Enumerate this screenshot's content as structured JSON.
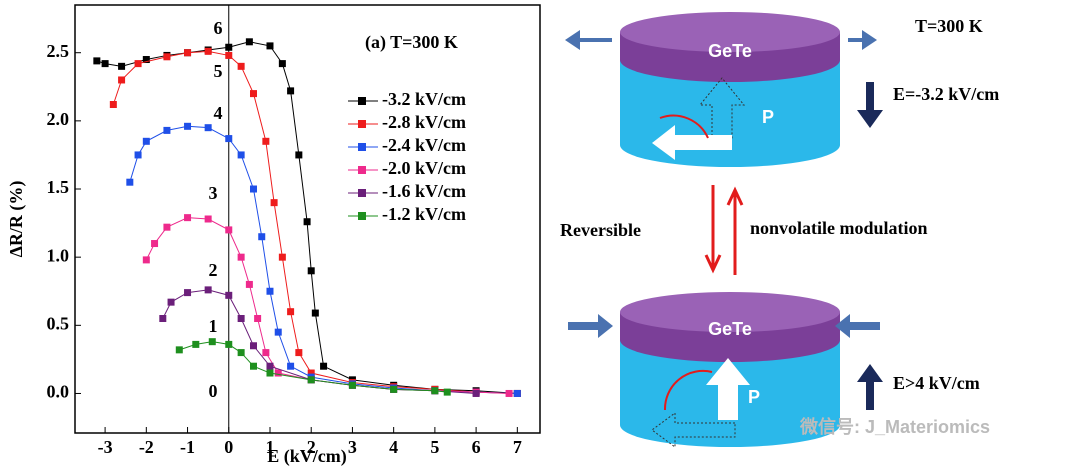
{
  "chart_data": {
    "type": "line",
    "title": "(a) T=300 K",
    "x_label": "E (kV/cm)",
    "y_label": "ΔR/R (%)",
    "xlim": [
      -3.73,
      7.55
    ],
    "ylim": [
      -0.29,
      2.85
    ],
    "xticks": [
      -3,
      -2,
      -1,
      0,
      1,
      2,
      3,
      4,
      5,
      6,
      7
    ],
    "yticks": [
      {
        "value": 0,
        "label": "0.0"
      },
      {
        "value": 0.5,
        "label": "0.5"
      },
      {
        "value": 1,
        "label": "1.0"
      },
      {
        "value": 1.5,
        "label": "1.5"
      },
      {
        "value": 2,
        "label": "2.0"
      },
      {
        "value": 2.5,
        "label": "2.5"
      }
    ],
    "annotations": [
      "6",
      "5",
      "4",
      "3",
      "2",
      "1",
      "0"
    ],
    "series": [
      {
        "name": "-3.2 kV/cm",
        "color": "#000000",
        "x": [
          -3.2,
          -3.0,
          -2.6,
          -2.0,
          -1.5,
          -1,
          -0.5,
          0,
          0.5,
          1.0,
          1.3,
          1.5,
          1.7,
          1.9,
          2.0,
          2.1,
          2.3,
          3,
          4,
          5,
          6,
          7
        ],
        "values": [
          2.44,
          2.42,
          2.4,
          2.45,
          2.48,
          2.5,
          2.52,
          2.54,
          2.58,
          2.55,
          2.42,
          2.22,
          1.75,
          1.26,
          0.9,
          0.59,
          0.2,
          0.1,
          0.06,
          0.03,
          0.02,
          0
        ]
      },
      {
        "name": "-2.8 kV/cm",
        "color": "#ee1c1c",
        "x": [
          -2.8,
          -2.6,
          -2.2,
          -1.5,
          -1,
          -0.5,
          0,
          0.3,
          0.6,
          0.9,
          1.1,
          1.3,
          1.5,
          1.7,
          2,
          3,
          4,
          5,
          6,
          7
        ],
        "values": [
          2.12,
          2.3,
          2.42,
          2.47,
          2.5,
          2.51,
          2.48,
          2.4,
          2.2,
          1.85,
          1.4,
          1.0,
          0.6,
          0.3,
          0.15,
          0.08,
          0.05,
          0.03,
          0.01,
          0
        ]
      },
      {
        "name": "-2.4 kV/cm",
        "color": "#1f4fe8",
        "x": [
          -2.4,
          -2.2,
          -2,
          -1.5,
          -1,
          -0.5,
          0,
          0.3,
          0.6,
          0.8,
          1.0,
          1.2,
          1.5,
          2,
          3,
          4,
          5,
          6,
          7
        ],
        "values": [
          1.55,
          1.75,
          1.85,
          1.93,
          1.96,
          1.95,
          1.87,
          1.75,
          1.5,
          1.15,
          0.75,
          0.45,
          0.2,
          0.12,
          0.07,
          0.04,
          0.02,
          0.01,
          0
        ]
      },
      {
        "name": "-2.0 kV/cm",
        "color": "#ee2a8c",
        "x": [
          -2.0,
          -1.8,
          -1.5,
          -1,
          -0.5,
          0,
          0.3,
          0.5,
          0.7,
          0.9,
          1.2,
          2,
          3,
          4,
          5,
          6,
          6.8
        ],
        "values": [
          0.98,
          1.1,
          1.22,
          1.29,
          1.28,
          1.2,
          1.0,
          0.8,
          0.55,
          0.3,
          0.15,
          0.1,
          0.06,
          0.03,
          0.02,
          0.01,
          0
        ]
      },
      {
        "name": "-1.6 kV/cm",
        "color": "#6b1f7a",
        "x": [
          -1.6,
          -1.4,
          -1,
          -0.5,
          0,
          0.3,
          0.6,
          1,
          2,
          3,
          4,
          5,
          6
        ],
        "values": [
          0.55,
          0.67,
          0.74,
          0.76,
          0.72,
          0.55,
          0.35,
          0.2,
          0.1,
          0.06,
          0.03,
          0.02,
          0
        ]
      },
      {
        "name": "-1.2 kV/cm",
        "color": "#1e8f1e",
        "x": [
          -1.2,
          -0.8,
          -0.4,
          0,
          0.3,
          0.6,
          1,
          2,
          3,
          4,
          5,
          5.3
        ],
        "values": [
          0.32,
          0.36,
          0.38,
          0.36,
          0.3,
          0.2,
          0.15,
          0.1,
          0.06,
          0.03,
          0.02,
          0.01
        ]
      }
    ]
  },
  "diagram": {
    "top": {
      "layer": "GeTe",
      "polarization": "P",
      "temperature": "T=300 K",
      "field": "E=-3.2 kV/cm"
    },
    "left_label": "Reversible",
    "right_label": "nonvolatile modulation",
    "bottom": {
      "layer": "GeTe",
      "polarization": "P",
      "field": "E>4 kV/cm"
    },
    "watermark": "微信号: J_Materiomics"
  }
}
